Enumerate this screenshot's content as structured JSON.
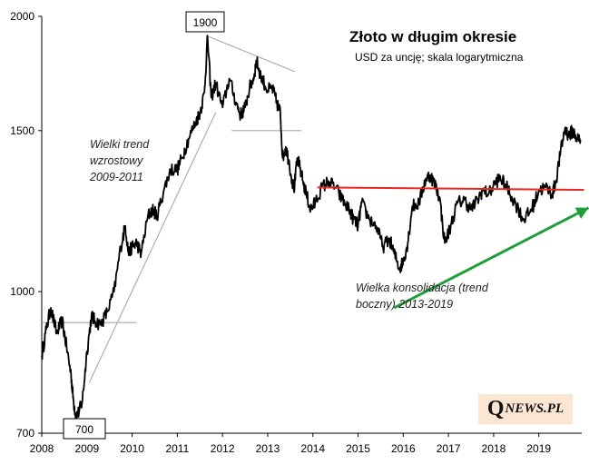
{
  "chart_data": {
    "type": "line",
    "title": "Złoto w długim okresie",
    "subtitle": "USD za uncję; skala logarytmiczna",
    "y_scale": "log",
    "ylim": [
      700,
      2000
    ],
    "y_ticks": [
      "2000",
      "1500",
      "1000",
      "700"
    ],
    "x_ticks": [
      "2008",
      "2009",
      "2010",
      "2011",
      "2012",
      "2013",
      "2014",
      "2015",
      "2016",
      "2017",
      "2018",
      "2019"
    ],
    "xlim": [
      2008.0,
      2019.95
    ],
    "series": [
      {
        "x": [
          2008.0,
          2008.1,
          2008.2,
          2008.33,
          2008.45,
          2008.55,
          2008.65,
          2008.7,
          2008.76,
          2008.83,
          2008.9,
          2009.0,
          2009.1,
          2009.17,
          2009.3,
          2009.45,
          2009.6,
          2009.75,
          2009.85,
          2009.92,
          2010.0,
          2010.1,
          2010.2,
          2010.35,
          2010.45,
          2010.55,
          2010.7,
          2010.85,
          2011.0,
          2011.1,
          2011.25,
          2011.4,
          2011.5,
          2011.6,
          2011.67,
          2011.75,
          2011.85,
          2012.0,
          2012.15,
          2012.3,
          2012.4,
          2012.5,
          2012.6,
          2012.7,
          2012.75,
          2012.85,
          2013.0,
          2013.1,
          2013.2,
          2013.28,
          2013.33,
          2013.4,
          2013.48,
          2013.58,
          2013.66,
          2013.75,
          2013.85,
          2013.95,
          2014.05,
          2014.2,
          2014.35,
          2014.5,
          2014.65,
          2014.8,
          2014.9,
          2015.0,
          2015.08,
          2015.25,
          2015.4,
          2015.55,
          2015.7,
          2015.8,
          2015.92,
          2016.0,
          2016.1,
          2016.2,
          2016.35,
          2016.5,
          2016.6,
          2016.7,
          2016.8,
          2016.92,
          2017.05,
          2017.2,
          2017.35,
          2017.5,
          2017.65,
          2017.75,
          2017.9,
          2018.05,
          2018.15,
          2018.25,
          2018.4,
          2018.55,
          2018.65,
          2018.8,
          2018.9,
          2019.0,
          2019.15,
          2019.3,
          2019.38,
          2019.48,
          2019.58,
          2019.66,
          2019.75,
          2019.85,
          2019.92
        ],
        "y": [
          850,
          910,
          960,
          900,
          930,
          870,
          810,
          760,
          730,
          740,
          760,
          860,
          940,
          930,
          920,
          950,
          1000,
          1120,
          1180,
          1100,
          1120,
          1130,
          1100,
          1210,
          1230,
          1210,
          1290,
          1360,
          1360,
          1400,
          1470,
          1530,
          1570,
          1650,
          1900,
          1630,
          1690,
          1590,
          1710,
          1610,
          1560,
          1590,
          1670,
          1720,
          1790,
          1720,
          1660,
          1670,
          1610,
          1570,
          1400,
          1440,
          1380,
          1290,
          1400,
          1340,
          1280,
          1230,
          1250,
          1300,
          1320,
          1300,
          1260,
          1230,
          1200,
          1180,
          1250,
          1200,
          1180,
          1120,
          1140,
          1100,
          1060,
          1080,
          1130,
          1240,
          1250,
          1330,
          1340,
          1310,
          1270,
          1130,
          1180,
          1250,
          1260,
          1230,
          1260,
          1290,
          1280,
          1320,
          1330,
          1310,
          1270,
          1230,
          1200,
          1220,
          1250,
          1290,
          1300,
          1280,
          1320,
          1420,
          1510,
          1480,
          1500,
          1470,
          1465
        ]
      }
    ],
    "annotations": [
      {
        "text": "1900",
        "type": "box",
        "x": 2011.67,
        "y": 1900
      },
      {
        "text": "700",
        "type": "box",
        "x": 2008.85,
        "y": 700
      },
      {
        "text_lines": [
          "Wielki trend",
          "wzrostowy",
          "2009-2011"
        ]
      },
      {
        "text_lines": [
          "Wielka konsolidacja (trend",
          "boczny) 2013-2019"
        ]
      }
    ],
    "trendlines": [
      {
        "kind": "resistance",
        "color": "#e8281e",
        "from": [
          2014.1,
          1300
        ],
        "to": [
          2020.0,
          1292
        ]
      },
      {
        "kind": "support",
        "color": "#1f9e3a",
        "from": [
          2015.8,
          960
        ],
        "to": [
          2020.1,
          1235
        ],
        "arrow": true
      },
      {
        "kind": "thin",
        "color": "#a8a8a8",
        "from": [
          2009.05,
          795
        ],
        "to": [
          2011.85,
          1570
        ]
      },
      {
        "kind": "thin",
        "color": "#a8a8a8",
        "from": [
          2011.7,
          1900
        ],
        "to": [
          2013.6,
          1740
        ]
      },
      {
        "kind": "thin",
        "color": "#a8a8a8",
        "from": [
          2012.2,
          1500
        ],
        "to": [
          2013.75,
          1500
        ]
      },
      {
        "kind": "thin",
        "color": "#a8a8a8",
        "from": [
          2008.0,
          925
        ],
        "to": [
          2010.1,
          925
        ]
      }
    ],
    "grid": false,
    "legend": "none"
  },
  "logo": {
    "q": "Q",
    "rest": "NEWS.PL"
  }
}
